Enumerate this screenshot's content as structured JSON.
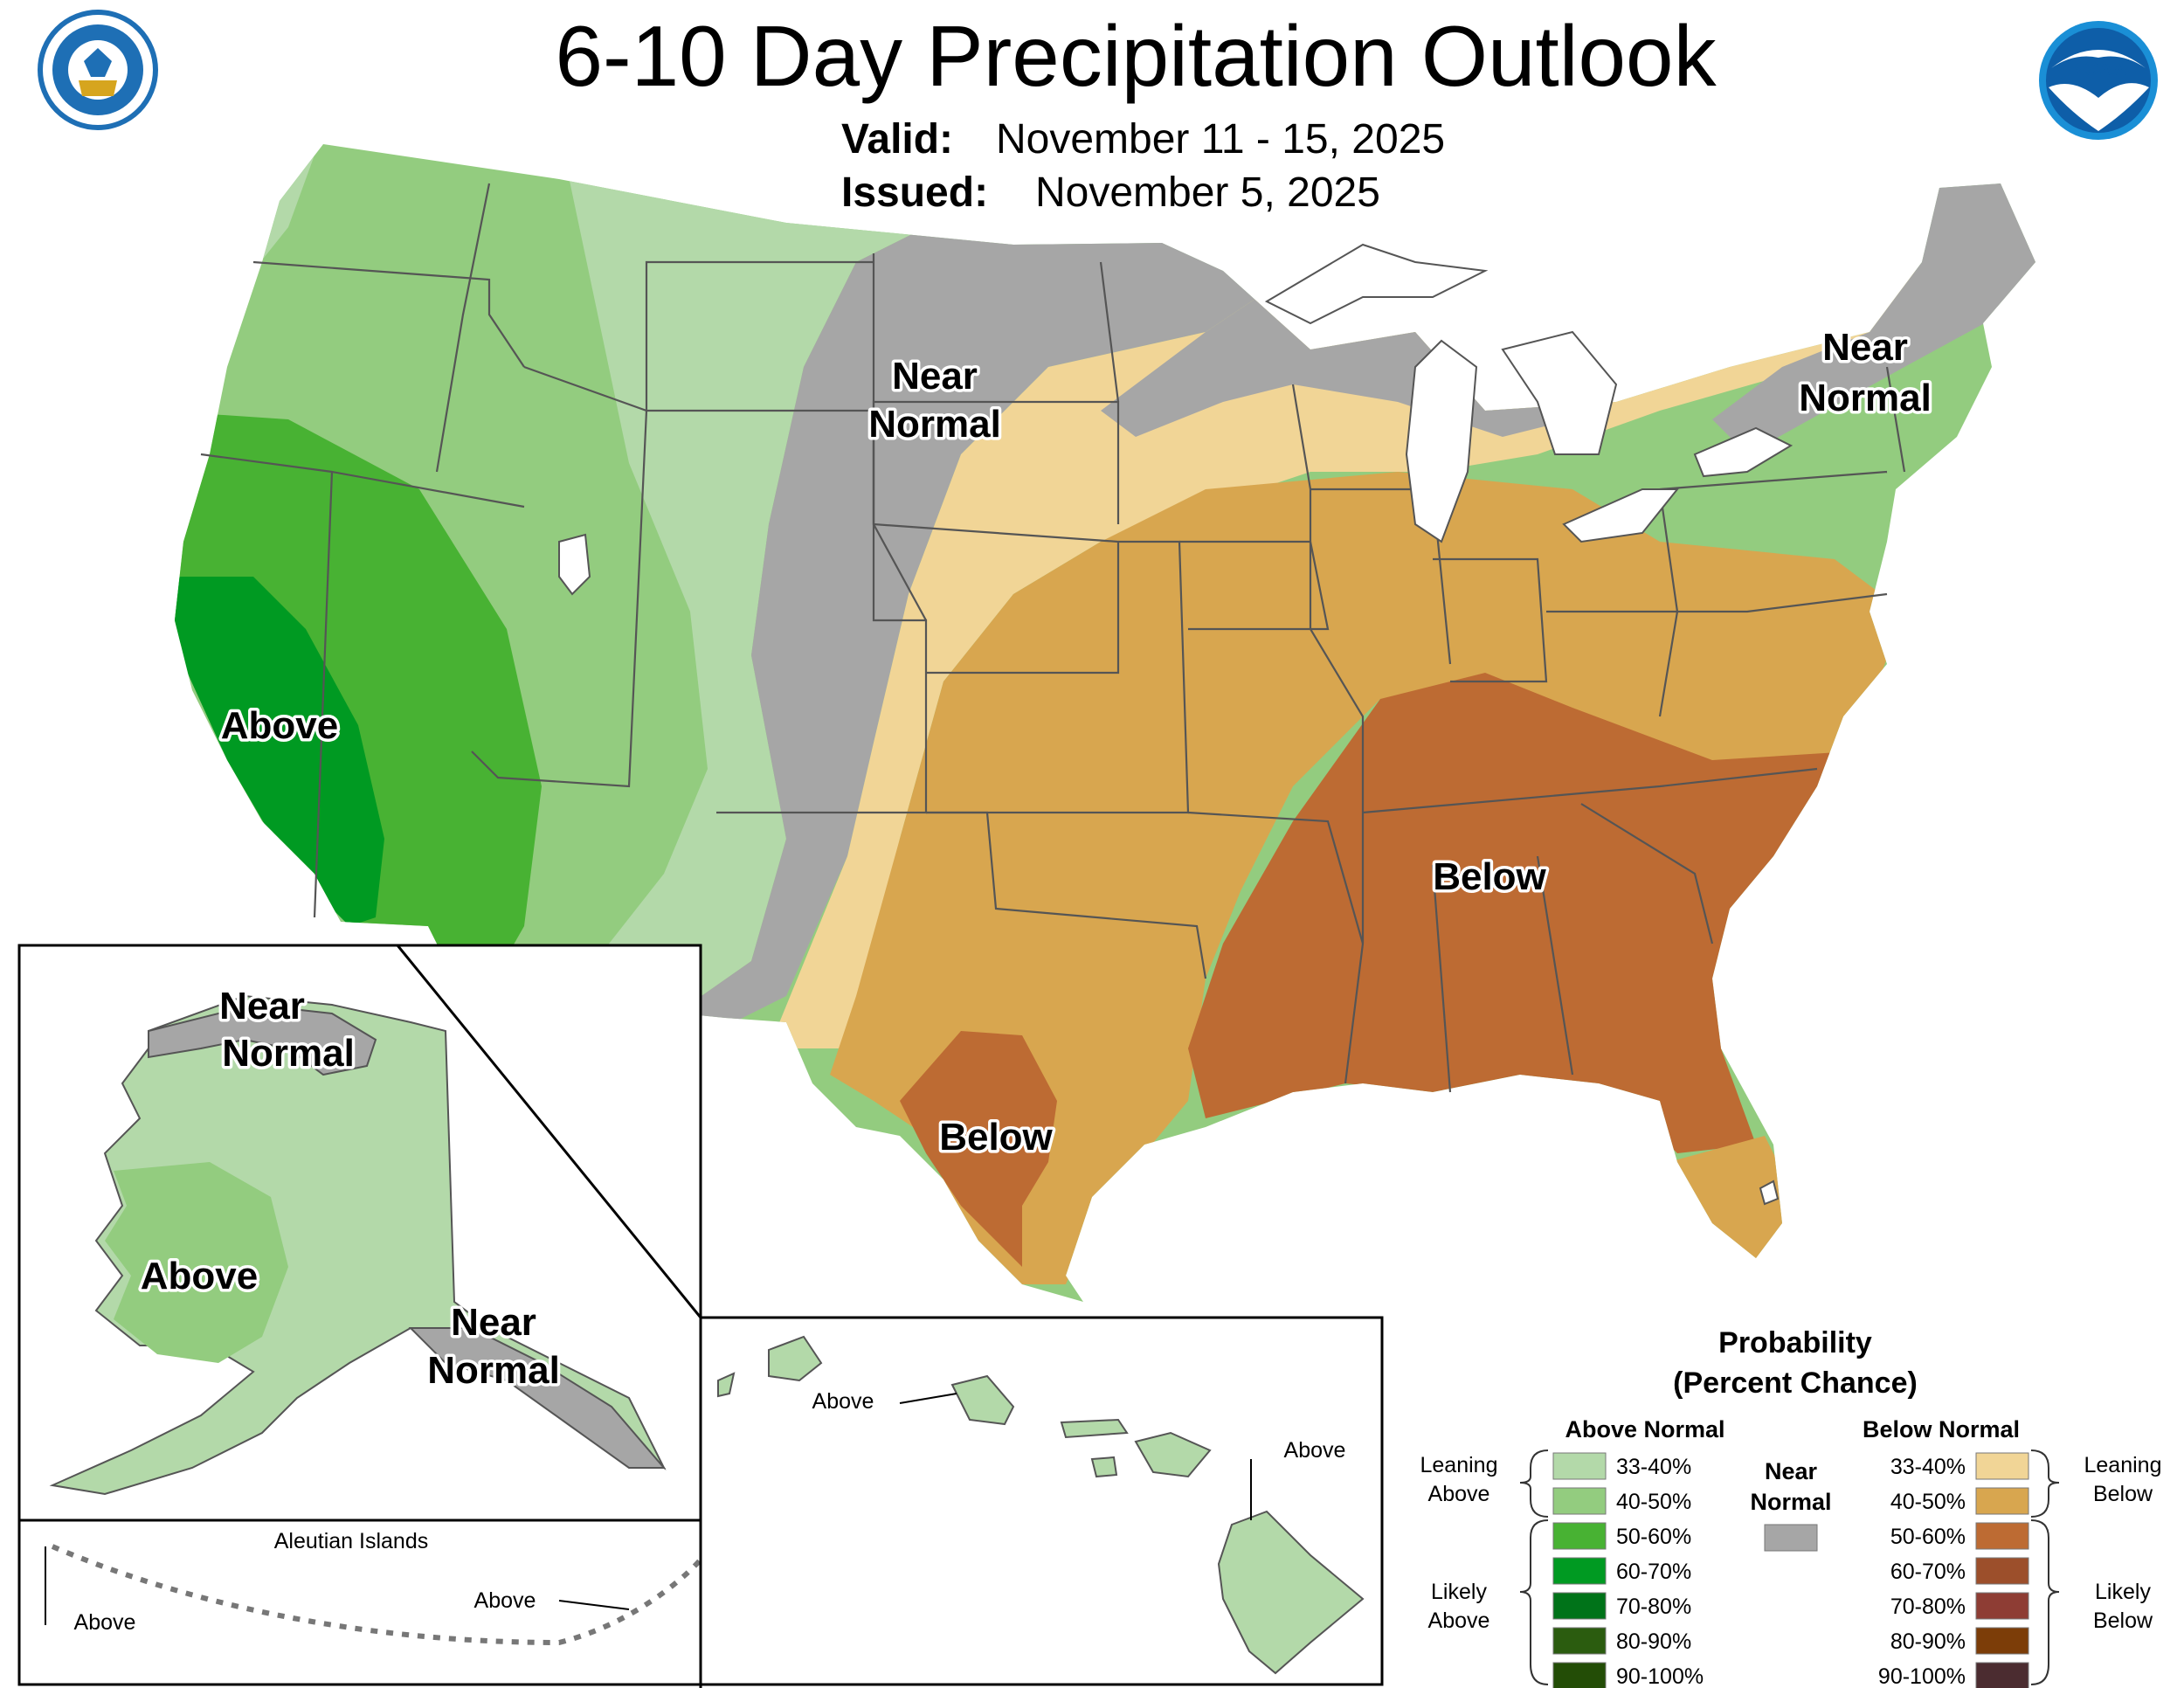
{
  "title": "6-10 Day Precipitation Outlook",
  "valid_label": "Valid:",
  "valid_value": "November 11 - 15, 2025",
  "issued_label": "Issued:",
  "issued_value": "November 5, 2025",
  "conus_labels": {
    "above_west": "Above",
    "near_normal_plains_1": "Near",
    "near_normal_plains_2": "Normal",
    "near_normal_ne_1": "Near",
    "near_normal_ne_2": "Normal",
    "below_se": "Below",
    "below_tx": "Below"
  },
  "alaska_labels": {
    "near_north_1": "Near",
    "near_north_2": "Normal",
    "above": "Above",
    "near_se_1": "Near",
    "near_se_2": "Normal"
  },
  "aleutian": {
    "title": "Aleutian Islands",
    "above_left": "Above",
    "above_right": "Above"
  },
  "hawaii_labels": {
    "above_oahu": "Above",
    "above_big_island": "Above"
  },
  "legend": {
    "title_1": "Probability",
    "title_2": "(Percent Chance)",
    "above_header": "Above Normal",
    "below_header": "Below Normal",
    "near_1": "Near",
    "near_2": "Normal",
    "leaning_above_1": "Leaning",
    "leaning_above_2": "Above",
    "likely_above_1": "Likely",
    "likely_above_2": "Above",
    "leaning_below_1": "Leaning",
    "leaning_below_2": "Below",
    "likely_below_1": "Likely",
    "likely_below_2": "Below",
    "above_bins": [
      {
        "label": "33-40%",
        "color": "#b3d9a9"
      },
      {
        "label": "40-50%",
        "color": "#93cc7f"
      },
      {
        "label": "50-60%",
        "color": "#48b233"
      },
      {
        "label": "60-70%",
        "color": "#009a22"
      },
      {
        "label": "70-80%",
        "color": "#007319"
      },
      {
        "label": "80-90%",
        "color": "#2b5c0f"
      },
      {
        "label": "90-100%",
        "color": "#234d06"
      }
    ],
    "below_bins": [
      {
        "label": "33-40%",
        "color": "#f1d596"
      },
      {
        "label": "40-50%",
        "color": "#d8a64f"
      },
      {
        "label": "50-60%",
        "color": "#bd6b33"
      },
      {
        "label": "60-70%",
        "color": "#9c4f2b"
      },
      {
        "label": "70-80%",
        "color": "#8e3d34"
      },
      {
        "label": "80-90%",
        "color": "#7c3d08"
      },
      {
        "label": "90-100%",
        "color": "#4b2c30"
      }
    ],
    "near_color": "#a6a6a6"
  },
  "logos": {
    "left": "department-of-commerce-seal",
    "right": "noaa-logo"
  }
}
